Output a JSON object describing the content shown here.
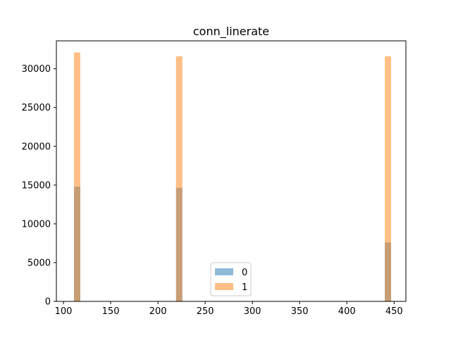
{
  "chart_data": {
    "type": "bar",
    "title": "conn_linerate",
    "xlabel": "",
    "ylabel": "",
    "xlim": [
      92.5,
      462.5
    ],
    "ylim": [
      0,
      33600
    ],
    "bin_width": 6.68,
    "x_ticks": [
      100,
      150,
      200,
      250,
      300,
      350,
      400,
      450
    ],
    "y_ticks": [
      0,
      5000,
      10000,
      15000,
      20000,
      25000,
      30000
    ],
    "x_tick_labels": [
      "100",
      "150",
      "200",
      "250",
      "300",
      "350",
      "400",
      "450"
    ],
    "y_tick_labels": [
      "0",
      "5000",
      "10000",
      "15000",
      "20000",
      "25000",
      "30000"
    ],
    "bin_centers": [
      114.5,
      222.5,
      443.5
    ],
    "series": [
      {
        "name": "0",
        "values": [
          14800,
          14650,
          7600
        ],
        "color": "#1f77b4",
        "alpha": 0.5
      },
      {
        "name": "1",
        "values": [
          32100,
          31600,
          31600
        ],
        "color": "#ff7f0e",
        "alpha": 0.5
      }
    ],
    "legend_position": "lower center",
    "grid": false
  }
}
